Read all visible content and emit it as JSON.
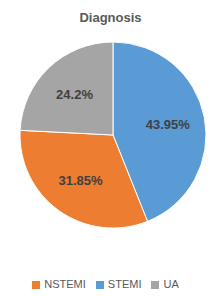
{
  "chart_data": {
    "type": "pie",
    "title": "Diagnosis",
    "categories": [
      "STEMI",
      "NSTEMI",
      "UA"
    ],
    "values": [
      43.95,
      31.85,
      24.2
    ],
    "value_labels": [
      "43.95%",
      "31.85%",
      "24.2%"
    ],
    "colors": [
      "#5b9bd5",
      "#ed7d31",
      "#a5a5a5"
    ],
    "data_labels": true,
    "legend": "bottom"
  }
}
